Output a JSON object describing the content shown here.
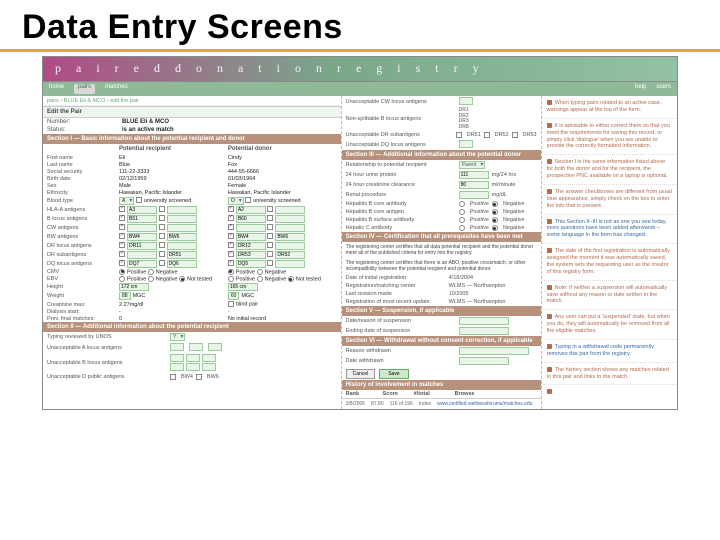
{
  "slide": {
    "title": "Data Entry Screens"
  },
  "banner": {
    "text": "p a i r e d   d o n a t i o n   r e g i s t r y"
  },
  "nav": {
    "items": [
      "home",
      "pairs",
      "matches",
      "",
      "help",
      "users"
    ],
    "active_index": 1
  },
  "crumb": "pairs  ›  BLUE Eli & MCO  ›  edit the pair",
  "header": {
    "title": "Edit the Pair",
    "number_label": "Number:",
    "number": "BLUE Eli & MCO",
    "status_label": "Status:",
    "status": "is an active match"
  },
  "s1": {
    "title": "Section I — Basic information about the potential recipient and donor",
    "col_a": "Potential recipient",
    "col_b": "Potential donor",
    "rows": [
      {
        "k": "First name",
        "a": "Eli",
        "b": "Cindy"
      },
      {
        "k": "Last name",
        "a": "Blue",
        "b": "Fox"
      },
      {
        "k": "Social security",
        "a": "111-22-3333",
        "b": "444-55-6666"
      },
      {
        "k": "Birth date",
        "a": "02/12/1959",
        "b": "01/03/1964"
      },
      {
        "k": "Sex",
        "a": "Male",
        "b": "Female"
      },
      {
        "k": "Ethnicity",
        "a": "Hawaiian, Pacific Islander",
        "b": "Hawaiian, Pacific Islander"
      }
    ],
    "blood_label": "Blood type",
    "blood_a": "A",
    "blood_b": "O",
    "antigen_rows": [
      {
        "k": "HLA-A antigens",
        "a1": "A3",
        "a2": "",
        "b1": "A2",
        "b2": ""
      },
      {
        "k": "B locus antigens",
        "a1": "B51",
        "a2": "",
        "b1": "B60",
        "b2": ""
      },
      {
        "k": "CW antigens",
        "a1": "",
        "a2": "",
        "b1": "",
        "b2": ""
      },
      {
        "k": "BW antigens",
        "a1": "BW4",
        "a2": "BW6",
        "b1": "BW4",
        "b2": "BW6"
      },
      {
        "k": "DR locus antigens",
        "a1": "DR11",
        "a2": "",
        "b1": "DR12",
        "b2": ""
      },
      {
        "k": "DR subantigens",
        "a1": "",
        "a2": "DR51",
        "b1": "DR53",
        "b2": "DR52"
      },
      {
        "k": "DQ locus antigens",
        "a1": "DQ7",
        "a2": "DQ6",
        "b1": "DQ5",
        "b2": ""
      }
    ],
    "cmv_label": "CMV",
    "cmv_opts": [
      "Positive",
      "Negative"
    ],
    "ebv_label": "EBV",
    "ebv_opts": [
      "Positive",
      "Negative"
    ],
    "height_label": "Height",
    "height_a": "172 cm",
    "height_b": "165 cm",
    "weight_label": "Weight",
    "weight_a": "88",
    "weight_b": "60",
    "prefinat_label": "Prev. final matches:",
    "prefinat_val": "0"
  },
  "s2": {
    "title": "Section II — Additional information about the potential recipient",
    "rows": [
      {
        "k": "Typing reviewed by UNOS",
        "v": "Y"
      },
      {
        "k": "Unacceptable A locus antigens",
        "boxes": 3
      },
      {
        "k": "Unacceptable B locus antigens",
        "boxes": 6
      },
      {
        "k": "Unacceptable D public antigens",
        "checks": [
          "BW4",
          "BW6"
        ]
      }
    ]
  },
  "col2_top": {
    "rows": [
      {
        "k": "Unacceptable CW locus antigens",
        "box": true
      },
      {
        "k": "Non-splittable B locus antigens",
        "list": [
          "DR1",
          "DR2",
          "DR3",
          "DR8"
        ]
      },
      {
        "k": "Unacceptable DR subantigens",
        "boxes": [
          "DR51",
          "DR52",
          "DR53"
        ]
      },
      {
        "k": "Unacceptable DQ locus antigens",
        "box": true
      }
    ]
  },
  "s3": {
    "title": "Section III — Additional information about the potential donor",
    "rows": [
      {
        "k": "Relationship to potential recipient",
        "v": "Parent"
      },
      {
        "k": "24 hour urine protein",
        "v": "111",
        "u": "mg/24 hrs"
      },
      {
        "k": "24 hour creatinine clearance",
        "v": "80",
        "u": "ml/minute"
      },
      {
        "k": "Renal procedure",
        "v": "",
        "u": "mg/dL"
      }
    ],
    "serol": [
      {
        "k": "Hepatitis B core antibody",
        "opts": [
          "Positive",
          "Negative"
        ]
      },
      {
        "k": "Hepatitis B core antigen",
        "opts": [
          "Positive",
          "Negative"
        ]
      },
      {
        "k": "Hepatitis B surface antibody",
        "opts": [
          "Positive",
          "Negative"
        ]
      },
      {
        "k": "Hepatic C antibody",
        "opts": [
          "Positive",
          "Negative"
        ]
      }
    ]
  },
  "s4": {
    "title": "Section IV — Certification that all prerequisites have been met",
    "para1": "The registering center certifies that all data potential recipient and the potential donor meet all of the published criteria for entry into the registry.",
    "para2": "The registering center certifies that there is an ABO, positive crossmatch, or other incompatibility between the potential recipient and potential donor.",
    "rows": [
      {
        "k": "Date of initial registration",
        "v": "4/18/2004"
      },
      {
        "k": "Registration/matching center",
        "v": "WLMS — Northampton"
      },
      {
        "k": "Last revision made",
        "v": "10/2005"
      },
      {
        "k": "Registration of most recent update",
        "v": "WLMS — Northampton"
      }
    ]
  },
  "s5": {
    "title": "Section V — Suspension, if applicable",
    "rows": [
      {
        "k": "Date/reason of suspension",
        "v": ""
      },
      {
        "k": "Ending date of suspension",
        "v": ""
      }
    ]
  },
  "s6": {
    "title": "Section VI — Withdrawal without consent correction, if applicable",
    "rows": [
      {
        "k": "Reason withdrawn",
        "v": ""
      },
      {
        "k": "Date withdrawn",
        "v": ""
      }
    ],
    "buttons": [
      "Cancel",
      "Save"
    ]
  },
  "s7": {
    "title": "History of involvement in matches",
    "head": [
      "Rank",
      "Score",
      "#/total",
      "",
      "Browse"
    ],
    "row": [
      "3/8/2005",
      "87.80",
      "116 of 196",
      "Index",
      "www.certified.wellnessforums/matches.edu"
    ]
  },
  "notes": [
    "When typing pairs related to an active case, warnings appear at the top of the form.",
    "It is advisable to either correct them so that you meet the requirements for saving this record, or simply click 'dialogue' when you are unable to provide the correctly formatted information.",
    "Section I is the same information listed above for both the donor and for the recipient, the prospective PNC available on a laptop is optional.",
    "The answer checkboxes are different from usual blue appearance, simply check on the box to enter the info that is present.",
    "This Section II–III is not as one you see today, more questions have been added afterwards – some language in the form has changed.",
    "The date of the first registration is automatically assigned the moment it was automatically saved, the system sets the requesting user as the creator of this registry form.",
    "Note: if neither a suspension will automatically save without any reason or date written in the match.",
    "Any user can put a 'suspended' state, but when you do, they will automatically be removed from all the eligible matches.",
    "Typing in a withdrawal code permanently removes this pair from the registry.",
    "The history section shows any matches related to this pair and links to the match.",
    ""
  ],
  "colors": {
    "gold": "#d6a93a",
    "banner_from": "#b14a86",
    "banner_to": "#93c1a4",
    "green": "#8fba97",
    "field": "#eaf5ea",
    "field_border": "#9c9",
    "sect_brown": "#b7917b",
    "note": "#b06a4d"
  }
}
